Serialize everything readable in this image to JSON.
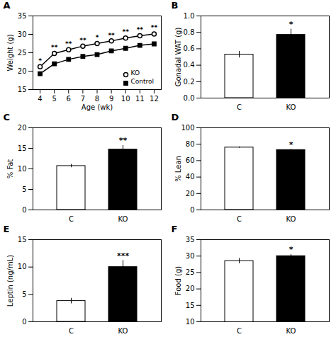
{
  "chart_data": [
    {
      "type": "line",
      "title": "A",
      "xlabel": "Age (wk)",
      "ylabel": "Weight (g)",
      "x": [
        4,
        5,
        6,
        7,
        8,
        9,
        10,
        11,
        12
      ],
      "series": [
        {
          "name": "KO",
          "color": "black",
          "marker": "open_circle",
          "line_style": "solid",
          "values": [
            21.2,
            24.8,
            25.8,
            26.8,
            27.5,
            28.2,
            29.0,
            29.6,
            30.1
          ],
          "errors": [
            0.4,
            0.4,
            0.4,
            0.4,
            0.4,
            0.4,
            0.5,
            0.5,
            0.5
          ]
        },
        {
          "name": "Control",
          "color": "black",
          "marker": "square",
          "line_style": "solid",
          "values": [
            19.3,
            22.0,
            23.2,
            24.0,
            24.5,
            25.5,
            26.2,
            27.0,
            27.4
          ],
          "errors": [
            0.3,
            0.3,
            0.3,
            0.3,
            0.3,
            0.3,
            0.4,
            0.4,
            0.4
          ]
        }
      ],
      "annotations": [
        {
          "x": 4,
          "text": "*"
        },
        {
          "x": 5,
          "text": "**"
        },
        {
          "x": 6,
          "text": "**"
        },
        {
          "x": 7,
          "text": "**"
        },
        {
          "x": 8,
          "text": "*"
        },
        {
          "x": 9,
          "text": "**"
        },
        {
          "x": 10,
          "text": "**"
        },
        {
          "x": 11,
          "text": "**"
        },
        {
          "x": 12,
          "text": "**"
        }
      ],
      "xlim": [
        3.5,
        12.5
      ],
      "xticks": [
        4,
        5,
        6,
        7,
        8,
        9,
        10,
        11,
        12
      ],
      "ylim": [
        15,
        35
      ],
      "yticks": [
        15,
        20,
        25,
        30,
        35
      ],
      "legend": "lower right",
      "grid": false
    },
    {
      "type": "bar",
      "title": "B",
      "ylabel": "Gonadal WAT (g)",
      "categories": [
        "C",
        "KO"
      ],
      "values": [
        0.53,
        0.77
      ],
      "errors": [
        0.04,
        0.07
      ],
      "colors": [
        "white",
        "black"
      ],
      "ylim": [
        0.0,
        1.0
      ],
      "yticks": [
        {
          "value": 0,
          "label": "0.0"
        },
        0.2,
        0.4,
        0.6,
        0.8,
        {
          "value": 1,
          "label": "1.0"
        }
      ],
      "annotations": [
        {
          "category": "KO",
          "text": "*"
        }
      ],
      "grid": false
    },
    {
      "type": "bar",
      "title": "C",
      "ylabel": "% Fat",
      "categories": [
        "C",
        "KO"
      ],
      "values": [
        10.7,
        14.7
      ],
      "errors": [
        0.4,
        1.0
      ],
      "colors": [
        "white",
        "black"
      ],
      "ylim": [
        0,
        20
      ],
      "yticks": [
        0,
        5,
        10,
        15,
        20
      ],
      "annotations": [
        {
          "category": "KO",
          "text": "**"
        }
      ],
      "grid": false
    },
    {
      "type": "bar",
      "title": "D",
      "ylabel": "% Lean",
      "categories": [
        "C",
        "KO"
      ],
      "values": [
        76.0,
        73.0
      ],
      "errors": [
        0.8,
        0.8
      ],
      "colors": [
        "white",
        "black"
      ],
      "ylim": [
        0,
        100
      ],
      "yticks": [
        0,
        20,
        40,
        60,
        80,
        100
      ],
      "annotations": [
        {
          "category": "KO",
          "text": "*"
        }
      ],
      "grid": false
    },
    {
      "type": "bar",
      "title": "E",
      "ylabel": "Leptin (ng/mL)",
      "categories": [
        "C",
        "KO"
      ],
      "values": [
        3.8,
        10.0
      ],
      "errors": [
        0.5,
        1.2
      ],
      "colors": [
        "white",
        "black"
      ],
      "ylim": [
        0,
        15
      ],
      "yticks": [
        0,
        5,
        10,
        15
      ],
      "annotations": [
        {
          "category": "KO",
          "text": "***"
        }
      ],
      "grid": false
    },
    {
      "type": "bar",
      "title": "F",
      "ylabel": "Food (g)",
      "categories": [
        "C",
        "KO"
      ],
      "values": [
        28.5,
        30.0
      ],
      "errors": [
        0.8,
        0.5
      ],
      "colors": [
        "white",
        "black"
      ],
      "ylim": [
        10,
        35
      ],
      "yticks": [
        10,
        15,
        20,
        25,
        30,
        35
      ],
      "annotations": [
        {
          "category": "KO",
          "text": "*"
        }
      ],
      "grid": false
    }
  ]
}
